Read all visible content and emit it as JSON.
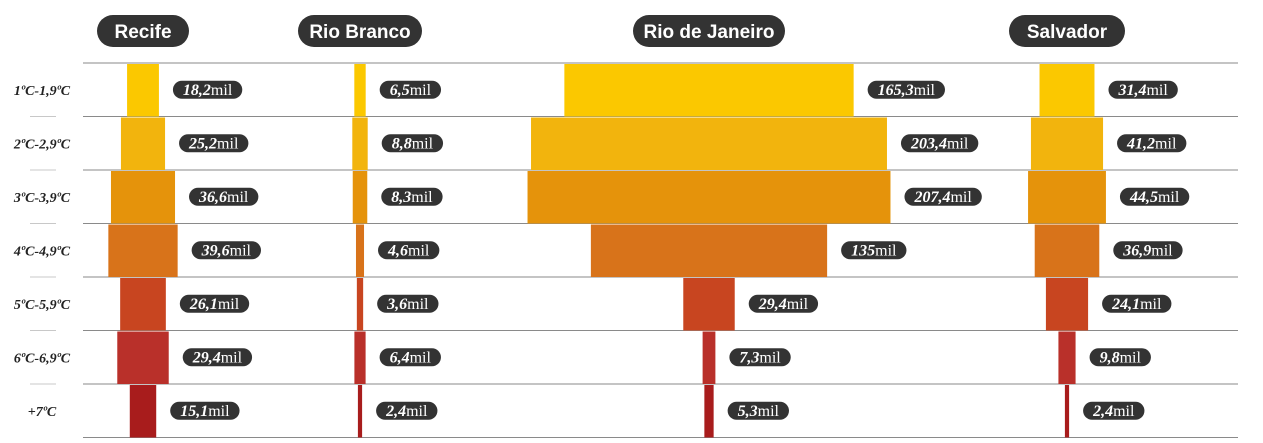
{
  "chart_data": {
    "type": "bar",
    "unit": "mil",
    "categories": [
      "1ºC-1,9ºC",
      "2ºC-2,9ºC",
      "3ºC-3,9ºC",
      "4ºC-4,9ºC",
      "5ºC-5,9ºC",
      "6ºC-6,9ºC",
      "+7ºC"
    ],
    "series": [
      {
        "name": "Recife",
        "values": [
          18.2,
          25.2,
          36.6,
          39.6,
          26.1,
          29.4,
          15.1
        ],
        "labels": [
          "18,2",
          "25,2",
          "36,6",
          "39,6",
          "26,1",
          "29,4",
          "15,1"
        ]
      },
      {
        "name": "Rio Branco",
        "values": [
          6.5,
          8.8,
          8.3,
          4.6,
          3.6,
          6.4,
          2.4
        ],
        "labels": [
          "6,5",
          "8,8",
          "8,3",
          "4,6",
          "3,6",
          "6,4",
          "2,4"
        ]
      },
      {
        "name": "Rio de Janeiro",
        "values": [
          165.3,
          203.4,
          207.4,
          135,
          29.4,
          7.3,
          5.3
        ],
        "labels": [
          "165,3",
          "203,4",
          "207,4",
          "135",
          "29,4",
          "7,3",
          "5,3"
        ]
      },
      {
        "name": "Salvador",
        "values": [
          31.4,
          41.2,
          44.5,
          36.9,
          24.1,
          9.8,
          2.4
        ],
        "labels": [
          "31,4",
          "41,2",
          "44,5",
          "36,9",
          "24,1",
          "9,8",
          "2,4"
        ]
      }
    ],
    "row_colors": [
      "#fbc800",
      "#f2b40d",
      "#e5930b",
      "#d8731a",
      "#c84520",
      "#b9302a",
      "#a81c1c"
    ],
    "label_bg": "#333333",
    "grid": true,
    "legend": "none"
  }
}
